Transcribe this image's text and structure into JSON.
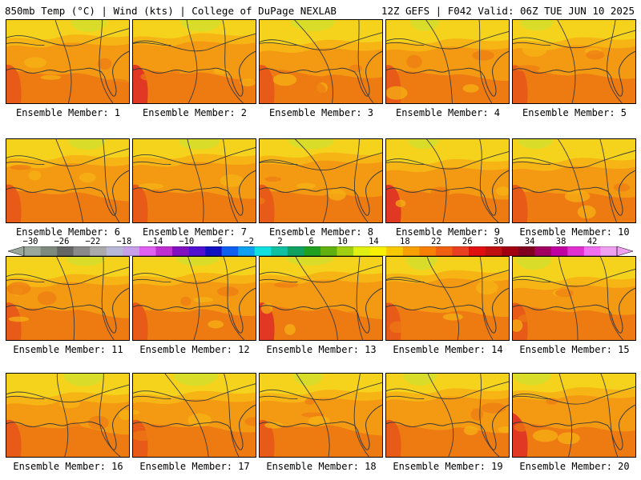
{
  "header": {
    "left": "850mb Temp (°C) | Wind (kts) | College of DuPage NEXLAB",
    "right": "12Z GEFS | F042 Valid: 06Z TUE JUN 10 2025"
  },
  "panel_label_prefix": "Ensemble Member: ",
  "members": [
    {
      "label": "Ensemble Member: 1"
    },
    {
      "label": "Ensemble Member: 2"
    },
    {
      "label": "Ensemble Member: 3"
    },
    {
      "label": "Ensemble Member: 4"
    },
    {
      "label": "Ensemble Member: 5"
    },
    {
      "label": "Ensemble Member: 6"
    },
    {
      "label": "Ensemble Member: 7"
    },
    {
      "label": "Ensemble Member: 8"
    },
    {
      "label": "Ensemble Member: 9"
    },
    {
      "label": "Ensemble Member: 10"
    },
    {
      "label": "Ensemble Member: 11"
    },
    {
      "label": "Ensemble Member: 12"
    },
    {
      "label": "Ensemble Member: 13"
    },
    {
      "label": "Ensemble Member: 14"
    },
    {
      "label": "Ensemble Member: 15"
    },
    {
      "label": "Ensemble Member: 16"
    },
    {
      "label": "Ensemble Member: 17"
    },
    {
      "label": "Ensemble Member: 18"
    },
    {
      "label": "Ensemble Member: 19"
    },
    {
      "label": "Ensemble Member: 20"
    }
  ],
  "colorbar": {
    "tick_labels": [
      "−30",
      "−26",
      "−22",
      "−18",
      "−14",
      "−10",
      "−6",
      "−2",
      "2",
      "6",
      "10",
      "14",
      "18",
      "22",
      "26",
      "30",
      "34",
      "38",
      "42"
    ],
    "colors": [
      "#9aa79a",
      "#7d8a7d",
      "#666666",
      "#8a8a8a",
      "#aaaaaa",
      "#b8b8d8",
      "#c8a0e8",
      "#e060f0",
      "#c030d0",
      "#8010c0",
      "#5010d0",
      "#1010c0",
      "#1060f0",
      "#10a0f0",
      "#10e0e0",
      "#10c0a0",
      "#10a060",
      "#20a020",
      "#60b010",
      "#a0d010",
      "#e0f010",
      "#f8f000",
      "#f8c800",
      "#f8a000",
      "#f88000",
      "#f06010",
      "#e84020",
      "#e01010",
      "#c01010",
      "#a00010",
      "#800020",
      "#a00060",
      "#c000a0",
      "#e030d0",
      "#f070f0",
      "#f0a0f0"
    ]
  },
  "map_colors": {
    "cool": "#d9dd2a",
    "yellow": "#f5d31c",
    "light_orange": "#f6b514",
    "orange": "#f49a12",
    "deep_orange": "#ee7a12",
    "red_orange": "#e85a18",
    "red": "#e03822",
    "line": "#3a3a3a"
  }
}
